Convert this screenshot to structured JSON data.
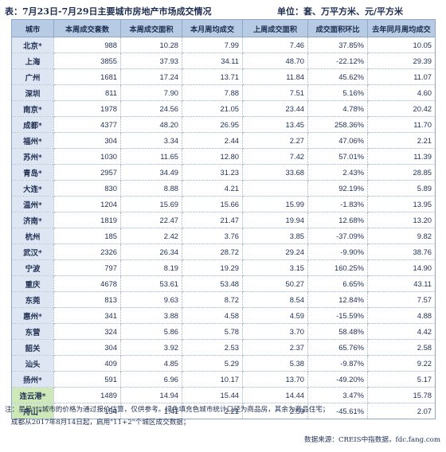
{
  "header": {
    "title": "表：7月23日-7月29日主要城市房地产市场成交情况",
    "unit": "单位：套、万平方米、元/平方米"
  },
  "table": {
    "columns": [
      "城市",
      "本周成交套数",
      "本周成交面积",
      "本月周均成交",
      "上周成交面积",
      "成交面积环比",
      "去年同月周均成交"
    ],
    "rows": [
      {
        "city": "北京*",
        "highlight": false,
        "values": [
          "988",
          "10.28",
          "7.99",
          "7.46",
          "37.85%",
          "10.05"
        ]
      },
      {
        "city": "上海",
        "highlight": false,
        "values": [
          "3855",
          "37.93",
          "34.11",
          "48.70",
          "-22.12%",
          "29.39"
        ]
      },
      {
        "city": "广州",
        "highlight": false,
        "values": [
          "1681",
          "17.24",
          "13.71",
          "11.84",
          "45.62%",
          "11.07"
        ]
      },
      {
        "city": "深圳",
        "highlight": false,
        "values": [
          "811",
          "7.90",
          "7.88",
          "7.51",
          "5.16%",
          "4.60"
        ]
      },
      {
        "city": "南京*",
        "highlight": false,
        "values": [
          "1978",
          "24.56",
          "21.05",
          "23.44",
          "4.78%",
          "20.42"
        ]
      },
      {
        "city": "成都*",
        "highlight": false,
        "values": [
          "4377",
          "48.20",
          "26.95",
          "13.45",
          "258.36%",
          "11.70"
        ]
      },
      {
        "city": "福州*",
        "highlight": false,
        "values": [
          "304",
          "3.34",
          "2.44",
          "2.27",
          "47.06%",
          "2.21"
        ]
      },
      {
        "city": "苏州*",
        "highlight": false,
        "values": [
          "1030",
          "11.65",
          "12.80",
          "7.42",
          "57.01%",
          "11.39"
        ]
      },
      {
        "city": "青岛*",
        "highlight": false,
        "values": [
          "2957",
          "34.49",
          "31.23",
          "33.68",
          "2.43%",
          "28.85"
        ]
      },
      {
        "city": "大连*",
        "highlight": false,
        "values": [
          "830",
          "8.88",
          "4.21",
          "",
          "92.19%",
          "5.89"
        ]
      },
      {
        "city": "温州*",
        "highlight": false,
        "values": [
          "1204",
          "15.69",
          "15.66",
          "15.99",
          "-1.83%",
          "13.95"
        ]
      },
      {
        "city": "济南*",
        "highlight": false,
        "values": [
          "1819",
          "22.47",
          "21.47",
          "19.94",
          "12.68%",
          "13.20"
        ]
      },
      {
        "city": "杭州",
        "highlight": false,
        "values": [
          "185",
          "2.42",
          "3.76",
          "3.85",
          "-37.09%",
          "9.82"
        ]
      },
      {
        "city": "武汉*",
        "highlight": false,
        "values": [
          "2326",
          "26.34",
          "28.72",
          "29.24",
          "-9.90%",
          "38.76"
        ]
      },
      {
        "city": "宁波",
        "highlight": false,
        "values": [
          "797",
          "8.19",
          "19.29",
          "3.15",
          "160.25%",
          "14.90"
        ]
      },
      {
        "city": "重庆",
        "highlight": false,
        "values": [
          "4678",
          "53.61",
          "53.48",
          "50.27",
          "6.65%",
          "43.11"
        ]
      },
      {
        "city": "东莞",
        "highlight": false,
        "values": [
          "813",
          "9.63",
          "8.72",
          "8.54",
          "12.84%",
          "7.57"
        ]
      },
      {
        "city": "惠州*",
        "highlight": false,
        "values": [
          "341",
          "3.88",
          "4.58",
          "4.59",
          "-15.59%",
          "4.88"
        ]
      },
      {
        "city": "东营",
        "highlight": false,
        "values": [
          "324",
          "5.86",
          "5.78",
          "3.70",
          "58.48%",
          "4.42"
        ]
      },
      {
        "city": "韶关",
        "highlight": false,
        "values": [
          "304",
          "3.92",
          "2.53",
          "2.37",
          "65.76%",
          "2.58"
        ]
      },
      {
        "city": "汕头",
        "highlight": false,
        "values": [
          "409",
          "4.85",
          "5.29",
          "5.38",
          "-9.87%",
          "9.22"
        ]
      },
      {
        "city": "扬州*",
        "highlight": false,
        "values": [
          "591",
          "6.96",
          "10.17",
          "13.70",
          "-49.20%",
          "5.17"
        ]
      },
      {
        "city": "连云港*",
        "highlight": true,
        "values": [
          "1489",
          "14.94",
          "15.44",
          "14.44",
          "3.47%",
          "15.78"
        ]
      },
      {
        "city": "舟山*",
        "highlight": true,
        "values": [
          "154",
          "1.41",
          "2.21",
          "2.59",
          "-45.61%",
          "2.07"
        ]
      }
    ]
  },
  "footer": {
    "note_line1": "注：星号\"*\"城市的价格为通过报价估算，仅供参考。绿色填充色城市统计口径为商品房，其余为商品住宅；",
    "note_line2": "成都从2017年8月14日起，启用\"11+2\"个城区成交数据；",
    "source": "数据来源：CREIS中指数据，fdc.fang.com"
  },
  "colors": {
    "header_bg": "#b7cbe4",
    "city_bg": "#dde6f2",
    "highlight_bg": "#cfe8b8",
    "text": "#1f2f52"
  }
}
